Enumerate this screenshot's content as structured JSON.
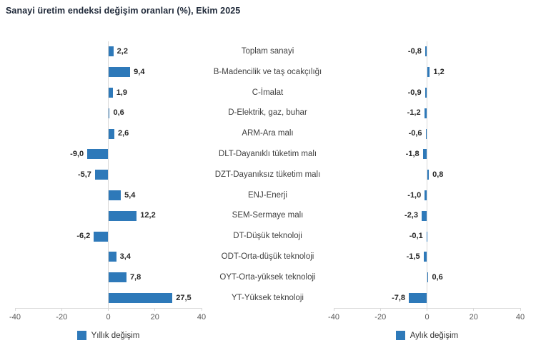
{
  "title": "Sanayi üretim endeksi değişim oranları (%), Ekim 2025",
  "colors": {
    "bar": "#2e79b9",
    "axis": "#d8d8d8",
    "tick_label": "#595959",
    "category_label": "#3f3f3f",
    "value_label": "#262626",
    "title": "#1e2838"
  },
  "categories": [
    "Toplam sanayi",
    "B-Madencilik ve taş ocakçılığı",
    "C-İmalat",
    "D-Elektrik, gaz, buhar",
    "ARM-Ara malı",
    "DLT-Dayanıklı tüketim malı",
    "DZT-Dayanıksız tüketim malı",
    "ENJ-Enerji",
    "SEM-Sermaye malı",
    "DT-Düşük teknoloji",
    "ODT-Orta-düşük teknoloji",
    "OYT-Orta-yüksek teknoloji",
    "YT-Yüksek teknoloji"
  ],
  "chart_data": [
    {
      "type": "bar",
      "orientation": "horizontal",
      "legend": "Yıllık değişim",
      "legend_position": "bottom",
      "grid": "zero-line-only",
      "xlim": [
        -40,
        40
      ],
      "xticks": [
        -40,
        -20,
        0,
        20,
        40
      ],
      "xtick_labels": [
        "-40",
        "-20",
        "0",
        "20",
        "40"
      ],
      "categories": [
        "Toplam sanayi",
        "B-Madencilik ve taş ocakçılığı",
        "C-İmalat",
        "D-Elektrik, gaz, buhar",
        "ARM-Ara malı",
        "DLT-Dayanıklı tüketim malı",
        "DZT-Dayanıksız tüketim malı",
        "ENJ-Enerji",
        "SEM-Sermaye malı",
        "DT-Düşük teknoloji",
        "ODT-Orta-düşük teknoloji",
        "OYT-Orta-yüksek teknoloji",
        "YT-Yüksek teknoloji"
      ],
      "values": [
        2.2,
        9.4,
        1.9,
        0.6,
        2.6,
        -9.0,
        -5.7,
        5.4,
        12.2,
        -6.2,
        3.4,
        7.8,
        27.5
      ],
      "labels": [
        "2,2",
        "9,4",
        "1,9",
        "0,6",
        "2,6",
        "-9,0",
        "-5,7",
        "5,4",
        "12,2",
        "-6,2",
        "3,4",
        "7,8",
        "27,5"
      ]
    },
    {
      "type": "bar",
      "orientation": "horizontal",
      "legend": "Aylık değişim",
      "legend_position": "bottom",
      "grid": "zero-line-only",
      "xlim": [
        -40,
        40
      ],
      "xticks": [
        -40,
        -20,
        0,
        20,
        40
      ],
      "xtick_labels": [
        "-40",
        "-20",
        "0",
        "20",
        "40"
      ],
      "categories": [
        "Toplam sanayi",
        "B-Madencilik ve taş ocakçılığı",
        "C-İmalat",
        "D-Elektrik, gaz, buhar",
        "ARM-Ara malı",
        "DLT-Dayanıklı tüketim malı",
        "DZT-Dayanıksız tüketim malı",
        "ENJ-Enerji",
        "SEM-Sermaye malı",
        "DT-Düşük teknoloji",
        "ODT-Orta-düşük teknoloji",
        "OYT-Orta-yüksek teknoloji",
        "YT-Yüksek teknoloji"
      ],
      "values": [
        -0.8,
        1.2,
        -0.9,
        -1.2,
        -0.6,
        -1.8,
        0.8,
        -1.0,
        -2.3,
        -0.1,
        -1.5,
        0.6,
        -7.8
      ],
      "labels": [
        "-0,8",
        "1,2",
        "-0,9",
        "-1,2",
        "-0,6",
        "-1,8",
        "0,8",
        "-1,0",
        "-2,3",
        "-0,1",
        "-1,5",
        "0,6",
        "-7,8"
      ]
    }
  ]
}
